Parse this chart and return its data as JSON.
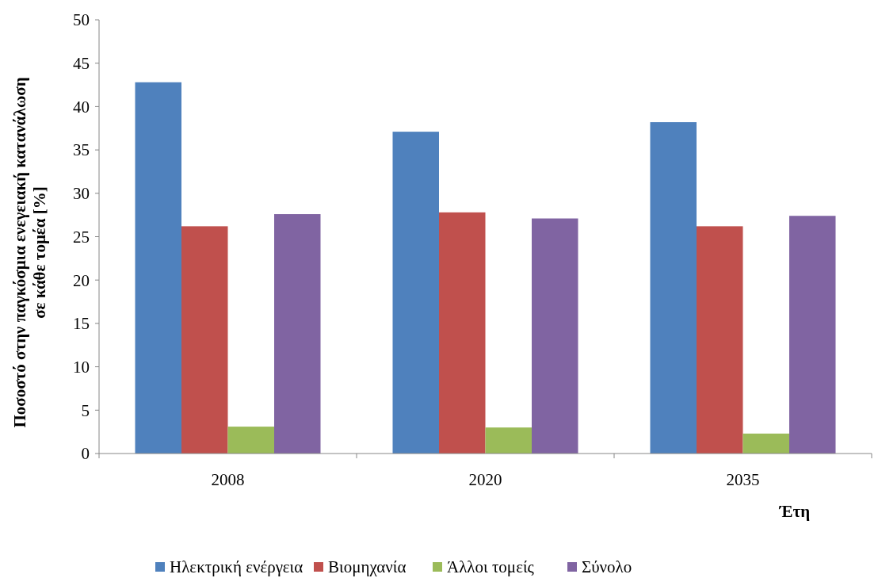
{
  "chart_data": {
    "type": "bar",
    "xlabel": "Έτη",
    "ylabel": "Ποσοστό στην παγκόσμια ενεγειακή κατανάλωση σε κάθε τομέα [%]",
    "categories": [
      "2008",
      "2020",
      "2035"
    ],
    "series": [
      {
        "name": "Ηλεκτρική ενέργεια",
        "color": "#4f81bd",
        "values": [
          42.8,
          37.1,
          38.2
        ]
      },
      {
        "name": "Βιομηχανία",
        "color": "#c0504d",
        "values": [
          26.2,
          27.8,
          26.2
        ]
      },
      {
        "name": "Άλλοι τομείς",
        "color": "#9bbb59",
        "values": [
          3.1,
          3.0,
          2.3
        ]
      },
      {
        "name": "Σύνολο",
        "color": "#8064a2",
        "values": [
          27.6,
          27.1,
          27.4
        ]
      }
    ],
    "ylim": [
      0,
      50
    ],
    "yticks": [
      0,
      5,
      10,
      15,
      20,
      25,
      30,
      35,
      40,
      45,
      50
    ],
    "grid": false,
    "legend": "bottom"
  }
}
